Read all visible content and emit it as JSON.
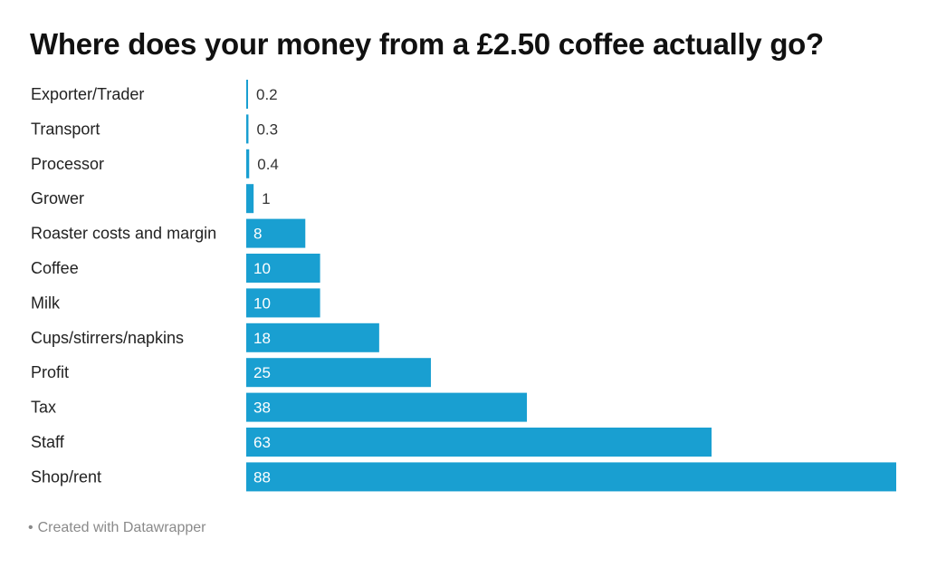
{
  "title": "Where does your money from a £2.50 coffee actually go?",
  "footer": {
    "bullet": "•",
    "text": "Created with Datawrapper"
  },
  "colors": {
    "bar": "#199fd1",
    "label_inside": "#ffffff",
    "label_outside": "#333333"
  },
  "chart_data": {
    "type": "bar",
    "orientation": "horizontal",
    "categories": [
      "Exporter/Trader",
      "Transport",
      "Processor",
      "Grower",
      "Roaster costs and margin",
      "Coffee",
      "Milk",
      "Cups/stirrers/napkins",
      "Profit",
      "Tax",
      "Staff",
      "Shop/rent"
    ],
    "values": [
      0.2,
      0.3,
      0.4,
      1,
      8,
      10,
      10,
      18,
      25,
      38,
      63,
      88
    ],
    "value_labels": [
      "0.2",
      "0.3",
      "0.4",
      "1",
      "8",
      "10",
      "10",
      "18",
      "25",
      "38",
      "63",
      "88"
    ],
    "xlim": [
      0,
      88
    ],
    "grid": false,
    "legend": "none"
  }
}
